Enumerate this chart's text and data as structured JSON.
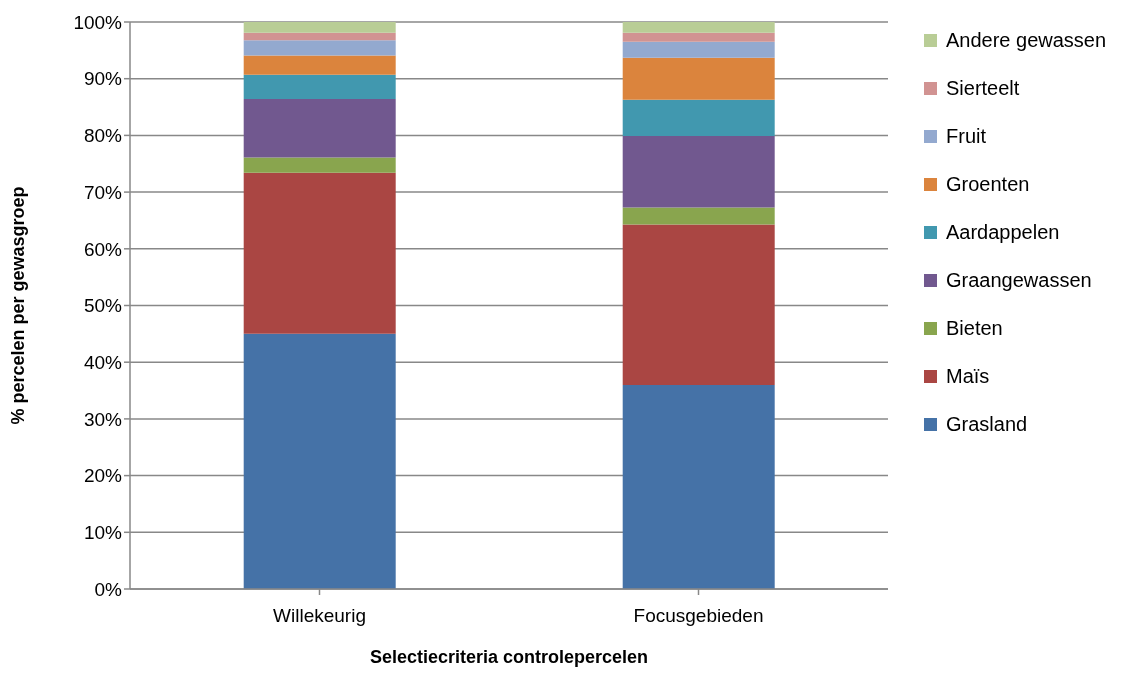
{
  "chart_data": {
    "type": "bar",
    "stacked": true,
    "xlabel": "Selectiecriteria controlepercelen",
    "ylabel": "% percelen per gewasgroep",
    "categories": [
      "Willekeurig",
      "Focusgebieden"
    ],
    "series": [
      {
        "name": "Grasland",
        "color": "#4572a7",
        "values": [
          45,
          36
        ]
      },
      {
        "name": "Maïs",
        "color": "#aa4643",
        "values": [
          28.4,
          28.3
        ]
      },
      {
        "name": "Bieten",
        "color": "#89a54e",
        "values": [
          2.7,
          3.0
        ]
      },
      {
        "name": "Graangewassen",
        "color": "#71588f",
        "values": [
          10.3,
          12.6
        ]
      },
      {
        "name": "Aardappelen",
        "color": "#4198af",
        "values": [
          4.3,
          6.4
        ]
      },
      {
        "name": "Groenten",
        "color": "#db843d",
        "values": [
          3.4,
          7.4
        ]
      },
      {
        "name": "Fruit",
        "color": "#93a9cf",
        "values": [
          2.7,
          2.8
        ]
      },
      {
        "name": "Sierteelt",
        "color": "#d19392",
        "values": [
          1.3,
          1.6
        ]
      },
      {
        "name": "Andere gewassen",
        "color": "#b9cd96",
        "values": [
          1.9,
          1.9
        ]
      }
    ],
    "ylim": [
      0,
      100
    ],
    "yticks": [
      {
        "value": 0,
        "label": "0%"
      },
      {
        "value": 10,
        "label": "10%"
      },
      {
        "value": 20,
        "label": "20%"
      },
      {
        "value": 30,
        "label": "30%"
      },
      {
        "value": 40,
        "label": "40%"
      },
      {
        "value": 50,
        "label": "50%"
      },
      {
        "value": 60,
        "label": "60%"
      },
      {
        "value": 70,
        "label": "70%"
      },
      {
        "value": 80,
        "label": "80%"
      },
      {
        "value": 90,
        "label": "90%"
      },
      {
        "value": 100,
        "label": "100%"
      }
    ],
    "grid": "y",
    "legend": "right"
  }
}
